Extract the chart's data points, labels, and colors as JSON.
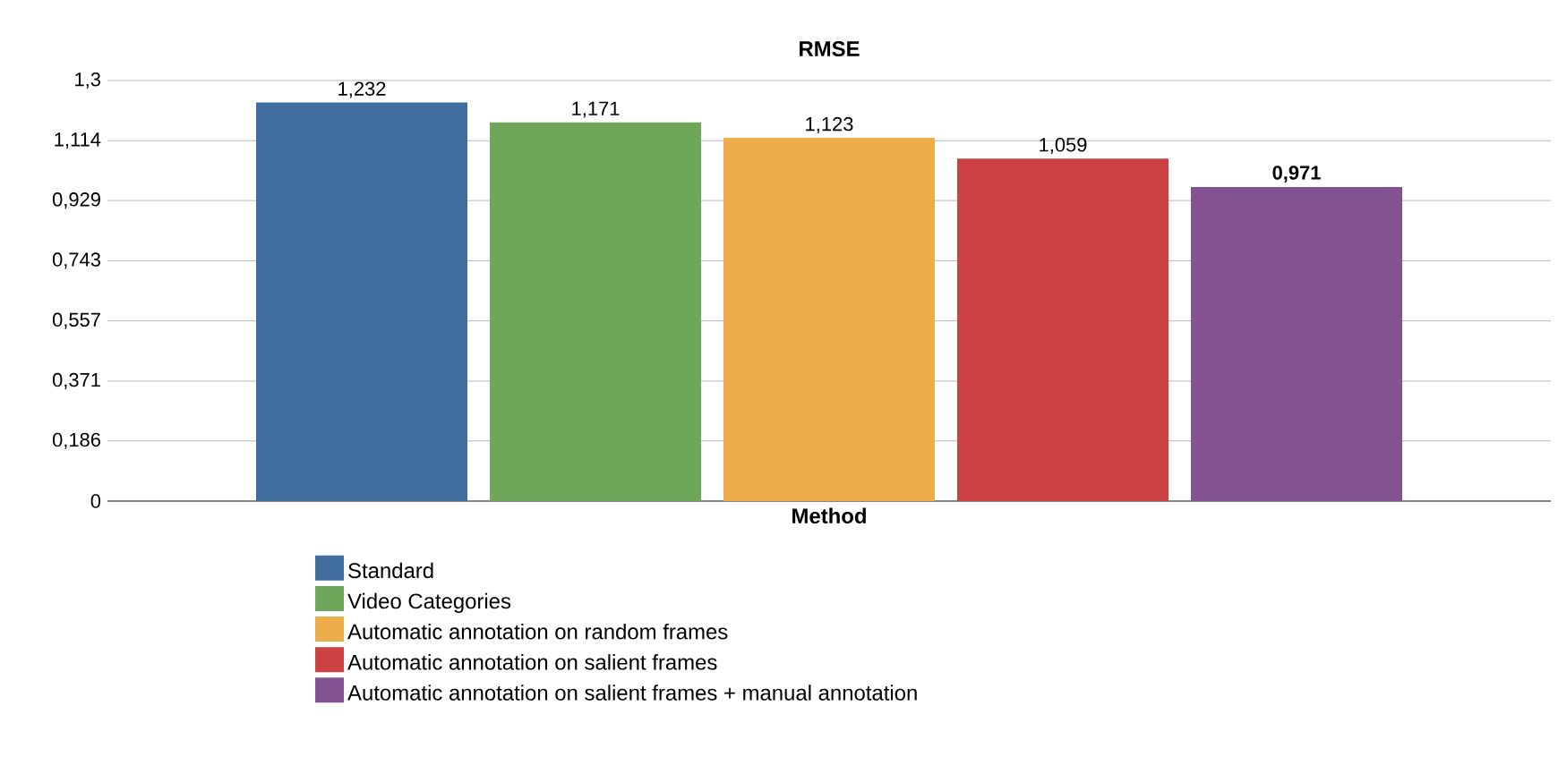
{
  "chart_data": {
    "type": "bar",
    "title": "RMSE",
    "xlabel": "Method",
    "categories": [
      null
    ],
    "series": [
      {
        "name": "Standard",
        "color": "#3e6d9e",
        "values": [
          1.232
        ],
        "value_labels": [
          "1,232"
        ]
      },
      {
        "name": "Video Categories",
        "color": "#6ea75a",
        "values": [
          1.171
        ],
        "value_labels": [
          "1,171"
        ]
      },
      {
        "name": "Automatic annotation on random frames",
        "color": "#ecad4a",
        "values": [
          1.123
        ],
        "value_labels": [
          "1,123"
        ]
      },
      {
        "name": "Automatic annotation on salient frames",
        "color": "#cc4142",
        "values": [
          1.059
        ],
        "value_labels": [
          "1,059"
        ]
      },
      {
        "name": "Automatic annotation on salient frames + manual annotation",
        "color": "#835391",
        "values": [
          0.971
        ],
        "value_labels": [
          "**0,971**"
        ]
      }
    ],
    "ylim": [
      0,
      1.3
    ],
    "yticks": [
      {
        "value": 0,
        "label": "0"
      },
      {
        "value": 0.186,
        "label": "0,186"
      },
      {
        "value": 0.371,
        "label": "0,371"
      },
      {
        "value": 0.557,
        "label": "0,557"
      },
      {
        "value": 0.743,
        "label": "0,743"
      },
      {
        "value": 0.929,
        "label": "0,929"
      },
      {
        "value": 1.114,
        "label": "1,114"
      },
      {
        "value": 1.3,
        "label": "1,3"
      }
    ],
    "grid": "y",
    "legend": "bottom"
  }
}
